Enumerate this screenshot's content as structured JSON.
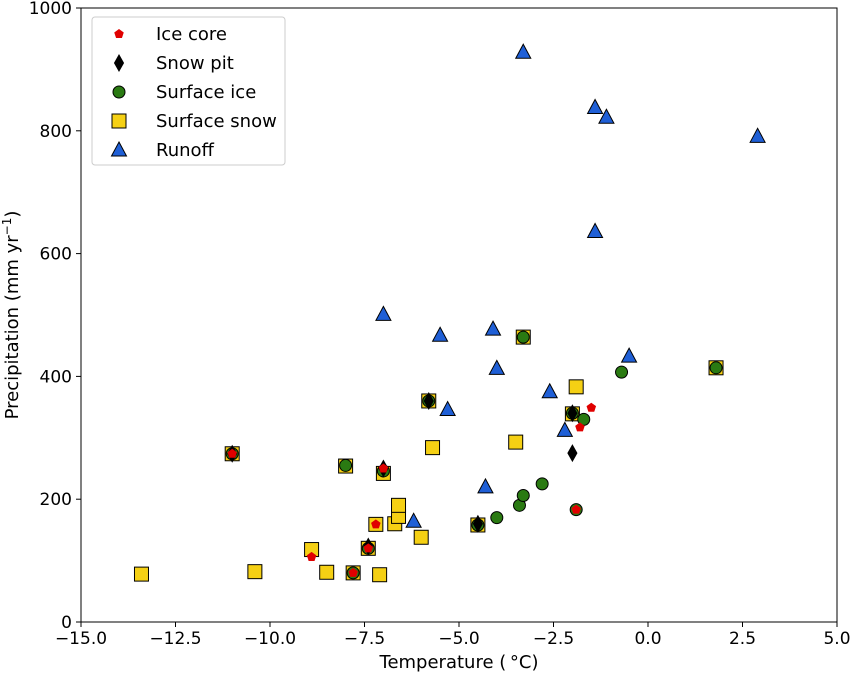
{
  "chart_data": {
    "type": "scatter",
    "title": "",
    "xlabel": "Temperature ( °C)",
    "ylabel_main": "Precipitation (mm yr",
    "ylabel_sup": "−1",
    "ylabel_close": ")",
    "xlim": [
      -15.0,
      5.0
    ],
    "ylim": [
      0,
      1000
    ],
    "xticks": [
      -15.0,
      -12.5,
      -10.0,
      -7.5,
      -5.0,
      -2.5,
      0.0,
      2.5,
      5.0
    ],
    "xtick_labels": [
      "−15.0",
      "−12.5",
      "−10.0",
      "−7.5",
      "−5.0",
      "−2.5",
      "0.0",
      "2.5",
      "5.0"
    ],
    "yticks": [
      0,
      200,
      400,
      600,
      800,
      1000
    ],
    "ytick_labels": [
      "0",
      "200",
      "400",
      "600",
      "800",
      "1000"
    ],
    "grid": false,
    "legend_position": "top-left",
    "series": [
      {
        "name": "Surface snow",
        "marker": "square",
        "color": "#f5d014",
        "points": [
          [
            -13.4,
            78
          ],
          [
            -10.4,
            82
          ],
          [
            -8.9,
            118
          ],
          [
            -8.5,
            81
          ],
          [
            -7.8,
            80
          ],
          [
            -7.4,
            120
          ],
          [
            -7.2,
            159
          ],
          [
            -7.1,
            77
          ],
          [
            -7.0,
            242
          ],
          [
            -6.7,
            160
          ],
          [
            -6.6,
            172
          ],
          [
            -6.6,
            190
          ],
          [
            -6.0,
            138
          ],
          [
            -5.8,
            360
          ],
          [
            -5.7,
            284
          ],
          [
            -4.5,
            158
          ],
          [
            -3.5,
            293
          ],
          [
            -3.3,
            464
          ],
          [
            -1.9,
            383
          ],
          [
            -2.0,
            339
          ],
          [
            1.8,
            414
          ],
          [
            -11.0,
            274
          ],
          [
            -8.0,
            254
          ]
        ]
      },
      {
        "name": "Surface ice",
        "marker": "circle",
        "color": "#2a7a12",
        "points": [
          [
            -11.0,
            274
          ],
          [
            -8.0,
            255
          ],
          [
            -7.8,
            80
          ],
          [
            -7.4,
            120
          ],
          [
            -7.0,
            246
          ],
          [
            -5.8,
            360
          ],
          [
            -4.5,
            158
          ],
          [
            -4.0,
            170
          ],
          [
            -3.4,
            190
          ],
          [
            -3.3,
            206
          ],
          [
            -3.3,
            464
          ],
          [
            -2.8,
            225
          ],
          [
            -2.0,
            340
          ],
          [
            -1.9,
            183
          ],
          [
            -1.7,
            330
          ],
          [
            -0.7,
            407
          ],
          [
            1.8,
            414
          ]
        ]
      },
      {
        "name": "Snow pit",
        "marker": "diamond",
        "color": "#000000",
        "points": [
          [
            -11.0,
            274
          ],
          [
            -7.4,
            123
          ],
          [
            -7.0,
            250
          ],
          [
            -5.8,
            360
          ],
          [
            -4.5,
            160
          ],
          [
            -2.0,
            340
          ],
          [
            -2.0,
            275
          ]
        ]
      },
      {
        "name": "Ice core",
        "marker": "pentagon",
        "color": "#e00000",
        "points": [
          [
            -11.0,
            274
          ],
          [
            -8.9,
            106
          ],
          [
            -7.8,
            80
          ],
          [
            -7.4,
            120
          ],
          [
            -7.2,
            159
          ],
          [
            -7.0,
            250
          ],
          [
            -1.9,
            183
          ],
          [
            -1.8,
            317
          ],
          [
            -1.5,
            349
          ]
        ]
      },
      {
        "name": "Runoff",
        "marker": "triangle",
        "color": "#1f5fd6",
        "points": [
          [
            -3.3,
            928
          ],
          [
            -1.4,
            838
          ],
          [
            -1.1,
            822
          ],
          [
            2.9,
            791
          ],
          [
            -1.4,
            636
          ],
          [
            -7.0,
            501
          ],
          [
            -5.5,
            467
          ],
          [
            -4.1,
            477
          ],
          [
            -4.0,
            413
          ],
          [
            -0.5,
            433
          ],
          [
            -2.6,
            375
          ],
          [
            -5.3,
            346
          ],
          [
            -2.2,
            312
          ],
          [
            -4.3,
            220
          ],
          [
            -6.2,
            164
          ]
        ]
      }
    ],
    "legend_order": [
      "Ice core",
      "Snow pit",
      "Surface ice",
      "Surface snow",
      "Runoff"
    ]
  }
}
